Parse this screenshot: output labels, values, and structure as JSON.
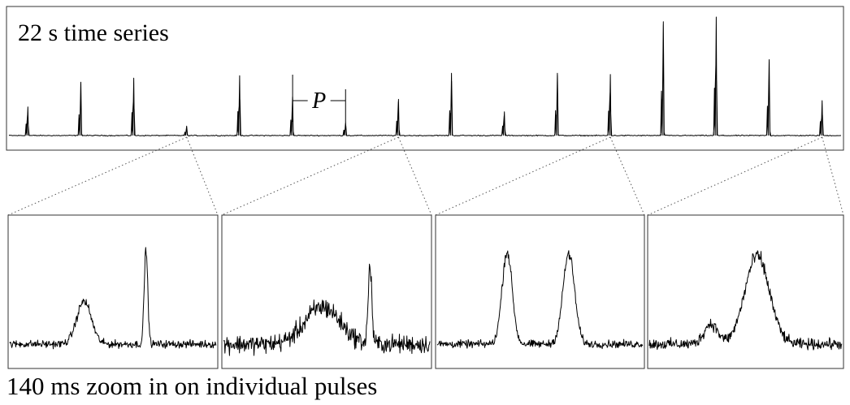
{
  "top_title": "22 s time series",
  "period_label": "P",
  "bottom_caption": "140 ms zoom in on individual pulses",
  "chart_data": [
    {
      "type": "line",
      "title": "22 s time series",
      "x_unit": "s",
      "xlim": [
        0,
        22
      ],
      "ylim": [
        0,
        1
      ],
      "baseline": 0.05,
      "pulses": [
        {
          "t": 0.5,
          "peak": 0.28
        },
        {
          "t": 1.9,
          "peak": 0.47
        },
        {
          "t": 3.3,
          "peak": 0.51
        },
        {
          "t": 4.7,
          "peak": 0.12
        },
        {
          "t": 6.1,
          "peak": 0.53
        },
        {
          "t": 7.5,
          "peak": 0.36
        },
        {
          "t": 8.9,
          "peak": 0.16
        },
        {
          "t": 10.3,
          "peak": 0.34
        },
        {
          "t": 11.7,
          "peak": 0.55
        },
        {
          "t": 13.1,
          "peak": 0.24
        },
        {
          "t": 14.5,
          "peak": 0.55
        },
        {
          "t": 15.9,
          "peak": 0.54
        },
        {
          "t": 17.3,
          "peak": 0.94
        },
        {
          "t": 18.7,
          "peak": 1.0
        },
        {
          "t": 20.1,
          "peak": 0.64
        },
        {
          "t": 21.5,
          "peak": 0.33
        }
      ],
      "period_marker": {
        "from_pulse": 5,
        "to_pulse": 6
      }
    },
    {
      "type": "line",
      "zoom_of_pulse": 3,
      "x_unit": "ms",
      "xlim": [
        0,
        140
      ],
      "components": [
        {
          "center": 0.36,
          "width": 0.05,
          "amp": 0.38
        },
        {
          "center": 0.66,
          "width": 0.012,
          "amp": 0.85
        }
      ],
      "noise": 0.05
    },
    {
      "type": "line",
      "zoom_of_pulse": 7,
      "x_unit": "ms",
      "xlim": [
        0,
        140
      ],
      "components": [
        {
          "center": 0.48,
          "width": 0.12,
          "amp": 0.33
        },
        {
          "center": 0.71,
          "width": 0.012,
          "amp": 0.7
        }
      ],
      "noise": 0.12
    },
    {
      "type": "line",
      "zoom_of_pulse": 11,
      "x_unit": "ms",
      "xlim": [
        0,
        140
      ],
      "components": [
        {
          "center": 0.34,
          "width": 0.035,
          "amp": 0.82
        },
        {
          "center": 0.64,
          "width": 0.04,
          "amp": 0.8
        }
      ],
      "noise": 0.05
    },
    {
      "type": "line",
      "zoom_of_pulse": 15,
      "x_unit": "ms",
      "xlim": [
        0,
        140
      ],
      "components": [
        {
          "center": 0.32,
          "width": 0.05,
          "amp": 0.18
        },
        {
          "center": 0.56,
          "width": 0.09,
          "amp": 0.78
        }
      ],
      "noise": 0.07
    }
  ]
}
